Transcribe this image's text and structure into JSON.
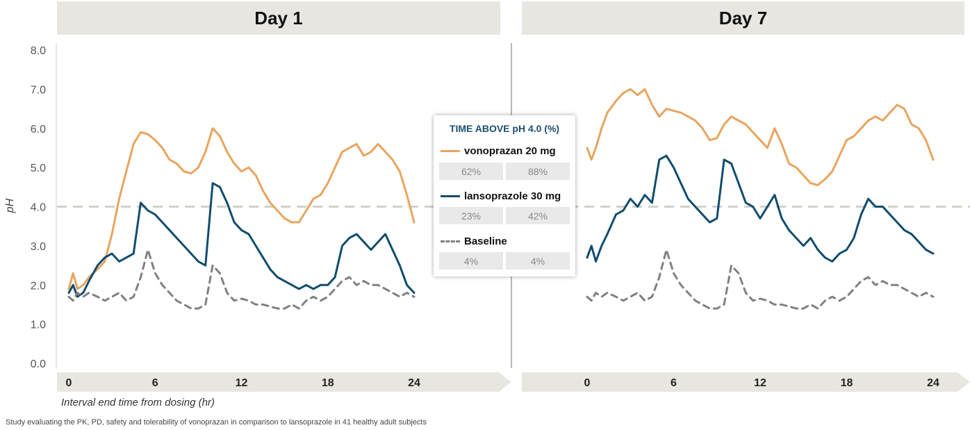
{
  "panels": [
    {
      "title": "Day 1"
    },
    {
      "title": "Day 7"
    }
  ],
  "legend": {
    "title": "TIME ABOVE  pH 4.0 (%)",
    "entries": [
      {
        "name": "vonoprazan 20 mg",
        "day1_pct": "62%",
        "day7_pct": "88%",
        "color": "#e9a45d",
        "dash": "solid"
      },
      {
        "name": "lansoprazole 30 mg",
        "day1_pct": "23%",
        "day7_pct": "42%",
        "color": "#0f4c6e",
        "dash": "solid"
      },
      {
        "name": "Baseline",
        "day1_pct": "4%",
        "day7_pct": "4%",
        "color": "#808080",
        "dash": "dashed"
      }
    ]
  },
  "footnote": "Study evaluating the PK, PD, safety and tolerability of vonoprazan in comparison to lansoprazole in 41 healthy adult subjects",
  "chart_data": {
    "type": "line",
    "ylabel": "pH",
    "xlabel": "Interval end time from dosing (hr)",
    "ylim": [
      0,
      8
    ],
    "yticks": [
      "0.0",
      "1.0",
      "2.0",
      "3.0",
      "4.0",
      "5.0",
      "6.0",
      "7.0",
      "8.0"
    ],
    "xlim": [
      0,
      24
    ],
    "xticks": [
      "0",
      "6",
      "12",
      "18",
      "24"
    ],
    "reference_line": 4.0,
    "panels": [
      {
        "name": "Day 1",
        "series": [
          {
            "name": "vonoprazan 20 mg",
            "x": [
              0,
              0.3,
              0.6,
              1,
              1.4,
              2,
              2.5,
              3,
              3.5,
              4,
              4.5,
              5,
              5.5,
              6,
              6.5,
              7,
              7.5,
              8,
              8.5,
              9,
              9.5,
              10,
              10.5,
              11,
              11.5,
              12,
              12.5,
              13,
              13.5,
              14,
              14.5,
              15,
              15.5,
              16,
              16.5,
              17,
              17.5,
              18,
              18.5,
              19,
              19.5,
              20,
              20.5,
              21,
              21.5,
              22,
              22.5,
              23,
              23.5,
              24
            ],
            "y": [
              1.9,
              2.3,
              1.9,
              2.0,
              2.2,
              2.4,
              2.6,
              3.3,
              4.2,
              4.9,
              5.6,
              5.9,
              5.85,
              5.7,
              5.5,
              5.2,
              5.1,
              4.9,
              4.85,
              5.0,
              5.4,
              6.0,
              5.8,
              5.4,
              5.1,
              4.9,
              5.0,
              4.8,
              4.4,
              4.1,
              3.9,
              3.7,
              3.6,
              3.6,
              3.9,
              4.2,
              4.3,
              4.6,
              5.0,
              5.4,
              5.5,
              5.6,
              5.3,
              5.4,
              5.6,
              5.4,
              5.2,
              4.9,
              4.3,
              3.6
            ]
          },
          {
            "name": "lansoprazole 30 mg",
            "x": [
              0,
              0.3,
              0.6,
              1,
              1.4,
              2,
              2.5,
              3,
              3.5,
              4,
              4.5,
              5,
              5.5,
              6,
              6.5,
              7,
              7.5,
              8,
              8.5,
              9,
              9.5,
              10,
              10.5,
              11,
              11.5,
              12,
              12.5,
              13,
              13.5,
              14,
              14.5,
              15,
              15.5,
              16,
              16.5,
              17,
              17.5,
              18,
              18.5,
              19,
              19.5,
              20,
              20.5,
              21,
              21.5,
              22,
              22.5,
              23,
              23.5,
              24
            ],
            "y": [
              1.8,
              2.0,
              1.7,
              1.8,
              2.1,
              2.5,
              2.7,
              2.8,
              2.6,
              2.7,
              2.8,
              4.1,
              3.9,
              3.8,
              3.6,
              3.4,
              3.2,
              3.0,
              2.8,
              2.6,
              2.5,
              4.6,
              4.5,
              4.1,
              3.6,
              3.4,
              3.3,
              3.0,
              2.7,
              2.4,
              2.2,
              2.1,
              2.0,
              1.9,
              2.0,
              1.9,
              2.0,
              2.0,
              2.2,
              3.0,
              3.2,
              3.3,
              3.1,
              2.9,
              3.1,
              3.3,
              2.9,
              2.5,
              2.0,
              1.8
            ]
          },
          {
            "name": "Baseline",
            "x": [
              0,
              0.3,
              0.6,
              1,
              1.4,
              2,
              2.5,
              3,
              3.5,
              4,
              4.5,
              5,
              5.5,
              6,
              6.5,
              7,
              7.5,
              8,
              8.5,
              9,
              9.5,
              10,
              10.5,
              11,
              11.5,
              12,
              12.5,
              13,
              13.5,
              14,
              14.5,
              15,
              15.5,
              16,
              16.5,
              17,
              17.5,
              18,
              18.5,
              19,
              19.5,
              20,
              20.5,
              21,
              21.5,
              22,
              22.5,
              23,
              23.5,
              24
            ],
            "y": [
              1.7,
              1.6,
              1.8,
              1.7,
              1.8,
              1.7,
              1.6,
              1.7,
              1.8,
              1.6,
              1.7,
              2.2,
              2.9,
              2.3,
              2.0,
              1.8,
              1.6,
              1.5,
              1.4,
              1.4,
              1.5,
              2.5,
              2.3,
              1.8,
              1.6,
              1.65,
              1.6,
              1.5,
              1.5,
              1.45,
              1.4,
              1.4,
              1.5,
              1.4,
              1.6,
              1.7,
              1.6,
              1.7,
              1.9,
              2.1,
              2.2,
              2.0,
              2.1,
              2.0,
              2.0,
              1.9,
              1.8,
              1.7,
              1.8,
              1.7
            ]
          }
        ]
      },
      {
        "name": "Day 7",
        "series": [
          {
            "name": "vonoprazan 20 mg",
            "x": [
              0,
              0.3,
              0.6,
              1,
              1.4,
              2,
              2.5,
              3,
              3.5,
              4,
              4.5,
              5,
              5.5,
              6,
              6.5,
              7,
              7.5,
              8,
              8.5,
              9,
              9.5,
              10,
              10.5,
              11,
              11.5,
              12,
              12.5,
              13,
              13.5,
              14,
              14.5,
              15,
              15.5,
              16,
              16.5,
              17,
              17.5,
              18,
              18.5,
              19,
              19.5,
              20,
              20.5,
              21,
              21.5,
              22,
              22.5,
              23,
              23.5,
              24
            ],
            "y": [
              5.5,
              5.2,
              5.5,
              6.0,
              6.4,
              6.7,
              6.9,
              7.0,
              6.85,
              7.0,
              6.6,
              6.3,
              6.5,
              6.45,
              6.4,
              6.3,
              6.2,
              6.0,
              5.7,
              5.75,
              6.1,
              6.3,
              6.2,
              6.1,
              5.9,
              5.7,
              5.5,
              6.0,
              5.6,
              5.1,
              5.0,
              4.8,
              4.6,
              4.55,
              4.7,
              4.9,
              5.3,
              5.7,
              5.8,
              6.0,
              6.2,
              6.3,
              6.2,
              6.4,
              6.6,
              6.5,
              6.1,
              6.0,
              5.7,
              5.2
            ]
          },
          {
            "name": "lansoprazole 30 mg",
            "x": [
              0,
              0.3,
              0.6,
              1,
              1.4,
              2,
              2.5,
              3,
              3.5,
              4,
              4.5,
              5,
              5.5,
              6,
              6.5,
              7,
              7.5,
              8,
              8.5,
              9,
              9.5,
              10,
              10.5,
              11,
              11.5,
              12,
              12.5,
              13,
              13.5,
              14,
              14.5,
              15,
              15.5,
              16,
              16.5,
              17,
              17.5,
              18,
              18.5,
              19,
              19.5,
              20,
              20.5,
              21,
              21.5,
              22,
              22.5,
              23,
              23.5,
              24
            ],
            "y": [
              2.7,
              3.0,
              2.6,
              3.0,
              3.3,
              3.8,
              3.9,
              4.2,
              4.0,
              4.3,
              4.1,
              5.2,
              5.3,
              5.0,
              4.6,
              4.2,
              4.0,
              3.8,
              3.6,
              3.7,
              5.2,
              5.1,
              4.6,
              4.1,
              4.0,
              3.7,
              4.0,
              4.3,
              3.7,
              3.4,
              3.2,
              3.0,
              3.2,
              2.9,
              2.7,
              2.6,
              2.8,
              2.9,
              3.2,
              3.8,
              4.2,
              4.0,
              4.0,
              3.8,
              3.6,
              3.4,
              3.3,
              3.1,
              2.9,
              2.8
            ]
          },
          {
            "name": "Baseline",
            "x": [
              0,
              0.3,
              0.6,
              1,
              1.4,
              2,
              2.5,
              3,
              3.5,
              4,
              4.5,
              5,
              5.5,
              6,
              6.5,
              7,
              7.5,
              8,
              8.5,
              9,
              9.5,
              10,
              10.5,
              11,
              11.5,
              12,
              12.5,
              13,
              13.5,
              14,
              14.5,
              15,
              15.5,
              16,
              16.5,
              17,
              17.5,
              18,
              18.5,
              19,
              19.5,
              20,
              20.5,
              21,
              21.5,
              22,
              22.5,
              23,
              23.5,
              24
            ],
            "y": [
              1.7,
              1.6,
              1.8,
              1.7,
              1.8,
              1.7,
              1.6,
              1.7,
              1.8,
              1.6,
              1.7,
              2.2,
              2.9,
              2.3,
              2.0,
              1.8,
              1.6,
              1.5,
              1.4,
              1.4,
              1.5,
              2.5,
              2.3,
              1.8,
              1.6,
              1.65,
              1.6,
              1.5,
              1.5,
              1.45,
              1.4,
              1.4,
              1.5,
              1.4,
              1.6,
              1.7,
              1.6,
              1.7,
              1.9,
              2.1,
              2.2,
              2.0,
              2.1,
              2.0,
              2.0,
              1.9,
              1.8,
              1.7,
              1.8,
              1.7
            ]
          }
        ]
      }
    ]
  }
}
